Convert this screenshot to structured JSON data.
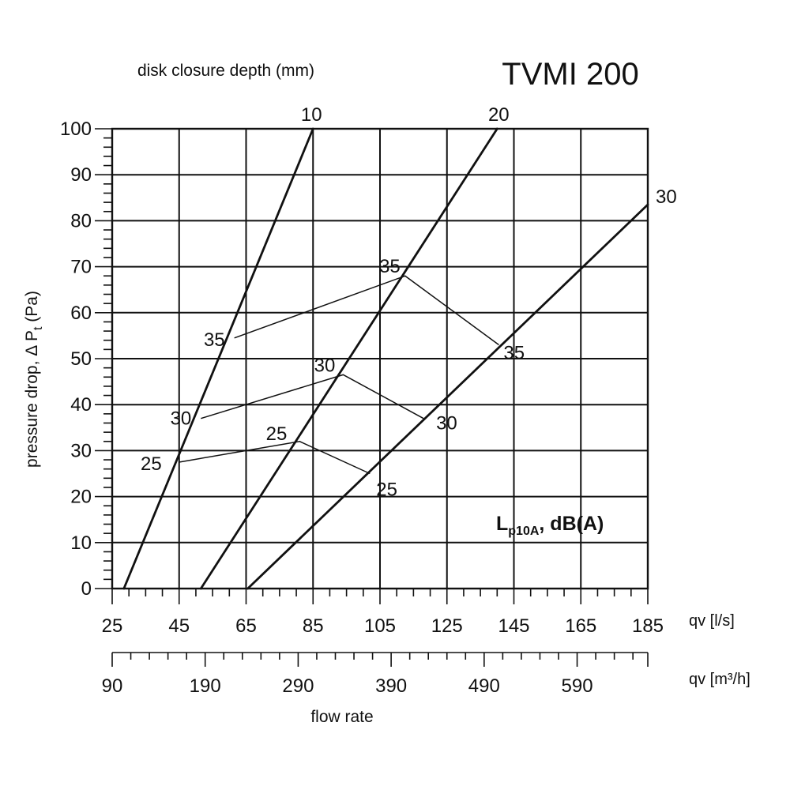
{
  "chart_data": {
    "type": "line",
    "title": "TVMI 200",
    "top_label": "disk closure depth (mm)",
    "ylabel": "pressure drop,  Δ P",
    "ylabel_sub": "t",
    "ylabel_unit": " (Pa)",
    "xlabel": "flow rate",
    "x_unit_label": "qv [l/s]",
    "x2_unit_label": "qv [m³/h]",
    "noise_label_main": "L",
    "noise_label_sub": "p10A",
    "noise_label_rest": ", dB(A)",
    "xlim": [
      25,
      185
    ],
    "ylim": [
      0,
      100
    ],
    "x_ticks": [
      25,
      45,
      65,
      85,
      105,
      125,
      145,
      165,
      185
    ],
    "y_ticks": [
      0,
      10,
      20,
      30,
      40,
      50,
      60,
      70,
      80,
      90,
      100
    ],
    "x2_ticks": [
      90,
      190,
      290,
      390,
      490,
      590
    ],
    "series": [
      {
        "name": "10",
        "x": [
          28.5,
          85.0
        ],
        "y": [
          0,
          100
        ]
      },
      {
        "name": "20",
        "x": [
          51.5,
          140.0
        ],
        "y": [
          0,
          100
        ]
      },
      {
        "name": "30",
        "x": [
          65.5,
          185.0
        ],
        "y": [
          0,
          83.5
        ]
      }
    ],
    "noise_lines": [
      {
        "level": "25",
        "x": [
          45.0,
          81.0,
          102.0
        ],
        "y": [
          27.5,
          32.0,
          25.0
        ],
        "labels": [
          "25",
          "25",
          "25"
        ]
      },
      {
        "level": "30",
        "x": [
          51.5,
          94.0,
          118.0
        ],
        "y": [
          37.0,
          46.5,
          37.0
        ],
        "labels": [
          "30",
          "30",
          "30"
        ]
      },
      {
        "level": "35",
        "x": [
          61.5,
          112.5,
          140.5
        ],
        "y": [
          54.5,
          68.0,
          53.0
        ],
        "labels": [
          "35",
          "35",
          "35"
        ]
      }
    ]
  }
}
